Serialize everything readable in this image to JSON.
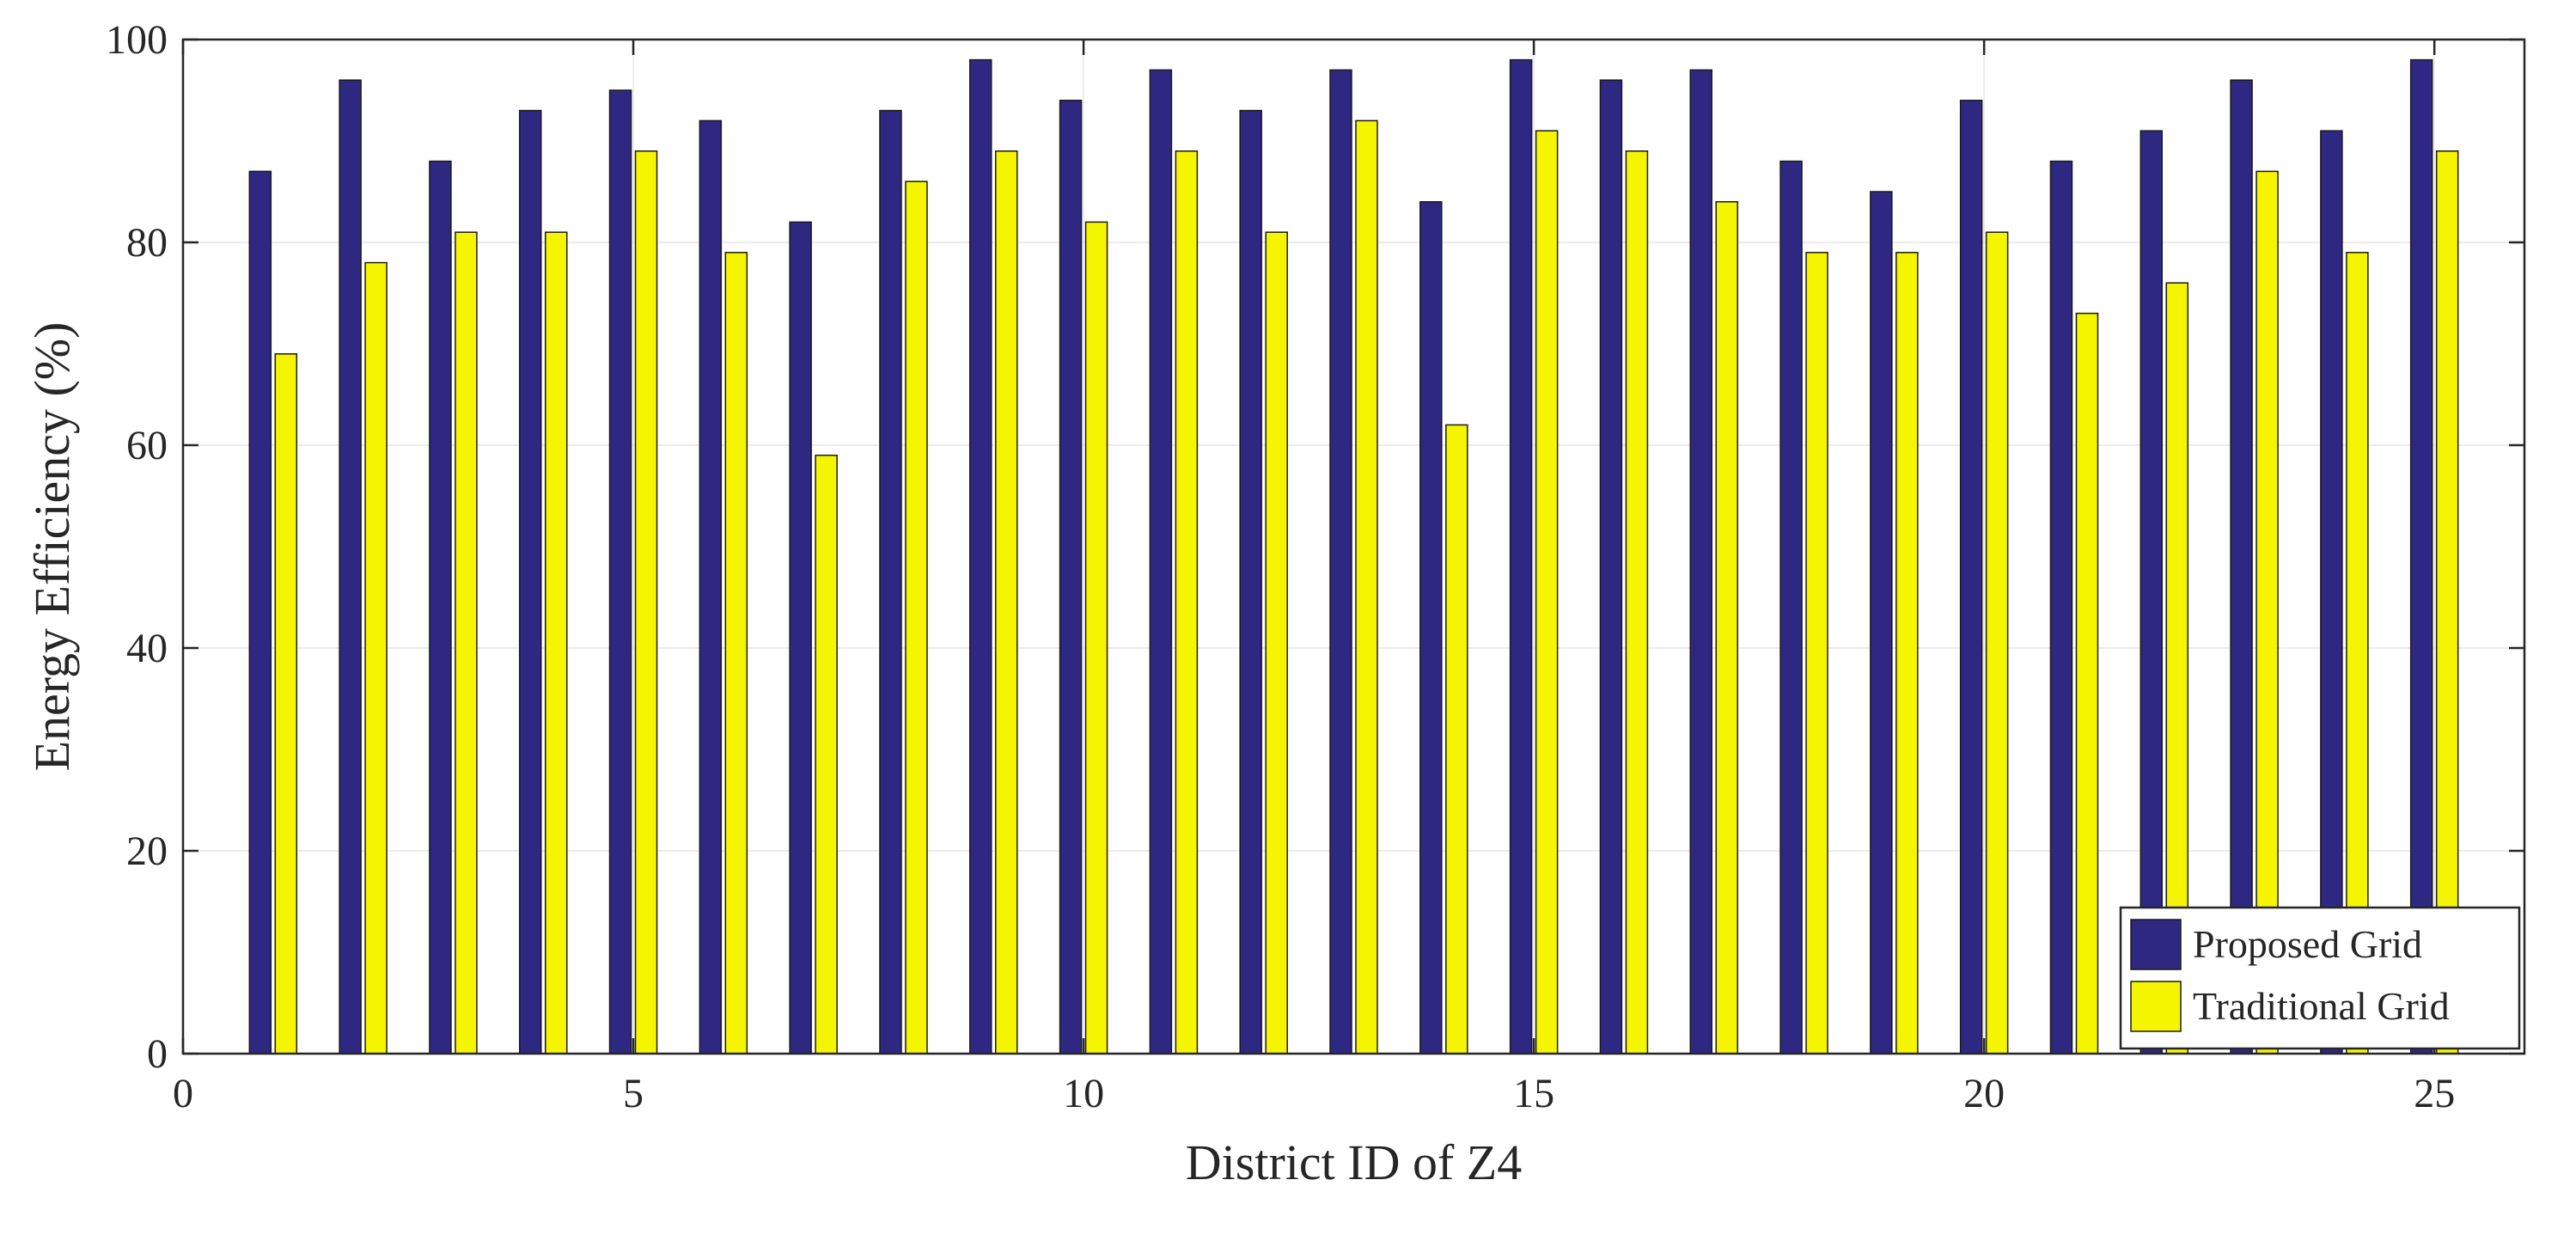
{
  "chart_data": {
    "type": "bar",
    "title": "",
    "xlabel": "District ID of Z4",
    "ylabel": "Energy Efficiency (%)",
    "xlim": [
      0,
      26
    ],
    "ylim": [
      0,
      100
    ],
    "xticks": [
      0,
      5,
      10,
      15,
      20,
      25
    ],
    "yticks": [
      0,
      20,
      40,
      60,
      80,
      100
    ],
    "grid": true,
    "legend_position": "bottom-right",
    "categories": [
      1,
      2,
      3,
      4,
      5,
      6,
      7,
      8,
      9,
      10,
      11,
      12,
      13,
      14,
      15,
      16,
      17,
      18,
      19,
      20,
      21,
      22,
      23,
      24,
      25
    ],
    "series": [
      {
        "name": "Proposed Grid",
        "color": "#2e2883",
        "values": [
          87,
          96,
          88,
          93,
          95,
          92,
          82,
          93,
          98,
          94,
          97,
          93,
          97,
          84,
          98,
          96,
          97,
          88,
          85,
          94,
          88,
          91,
          96,
          91,
          98
        ]
      },
      {
        "name": "Traditional Grid",
        "color": "#f5f500",
        "values": [
          69,
          78,
          81,
          81,
          89,
          79,
          59,
          86,
          89,
          82,
          89,
          81,
          92,
          62,
          91,
          89,
          84,
          79,
          79,
          81,
          73,
          76,
          87,
          79,
          89
        ]
      }
    ]
  }
}
